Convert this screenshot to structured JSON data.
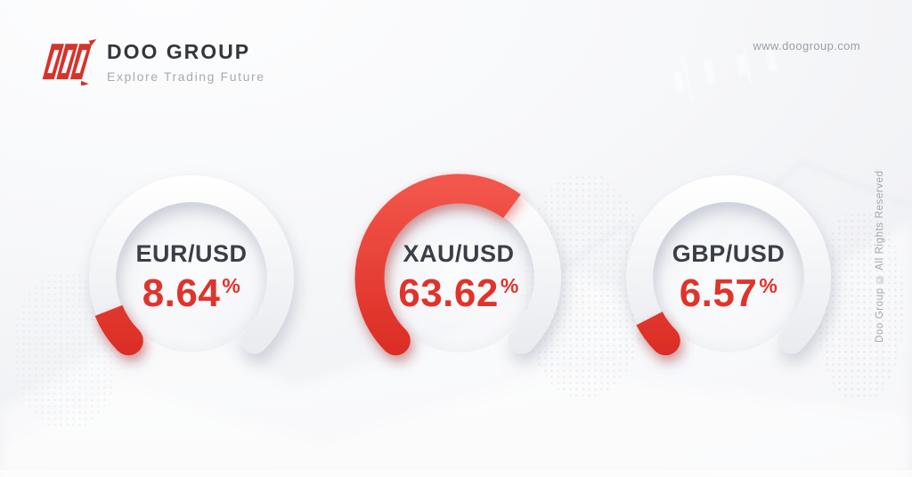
{
  "header": {
    "logo": {
      "icon_letters": "DOO",
      "brand": "DOO GROUP",
      "tagline": "Explore Trading Future"
    },
    "website": "www.doogroup.com"
  },
  "rights_notice": "Doo Group © All Rights Reserved",
  "colors": {
    "accent_red": "#e0332b",
    "arc_red_top": "#f3564b",
    "arc_red_bottom": "#d7261e",
    "track_top": "#ffffff",
    "track_bottom": "#e6e8ed",
    "title_dark": "#3a3f47",
    "muted_gray": "#9aa0a8"
  },
  "chart_data": [
    {
      "type": "gauge",
      "title": "EUR/USD",
      "value": 8.64,
      "unit": "%",
      "min": 0,
      "max": 100,
      "arc_span_deg": 270,
      "gap_position": "bottom",
      "fill_color": "#e0332b",
      "track_color": "#eef0f3"
    },
    {
      "type": "gauge",
      "title": "XAU/USD",
      "value": 63.62,
      "unit": "%",
      "min": 0,
      "max": 100,
      "arc_span_deg": 270,
      "gap_position": "bottom",
      "fill_color": "#e0332b",
      "track_color": "#eef0f3"
    },
    {
      "type": "gauge",
      "title": "GBP/USD",
      "value": 6.57,
      "unit": "%",
      "min": 0,
      "max": 100,
      "arc_span_deg": 270,
      "gap_position": "bottom",
      "fill_color": "#e0332b",
      "track_color": "#eef0f3"
    }
  ]
}
